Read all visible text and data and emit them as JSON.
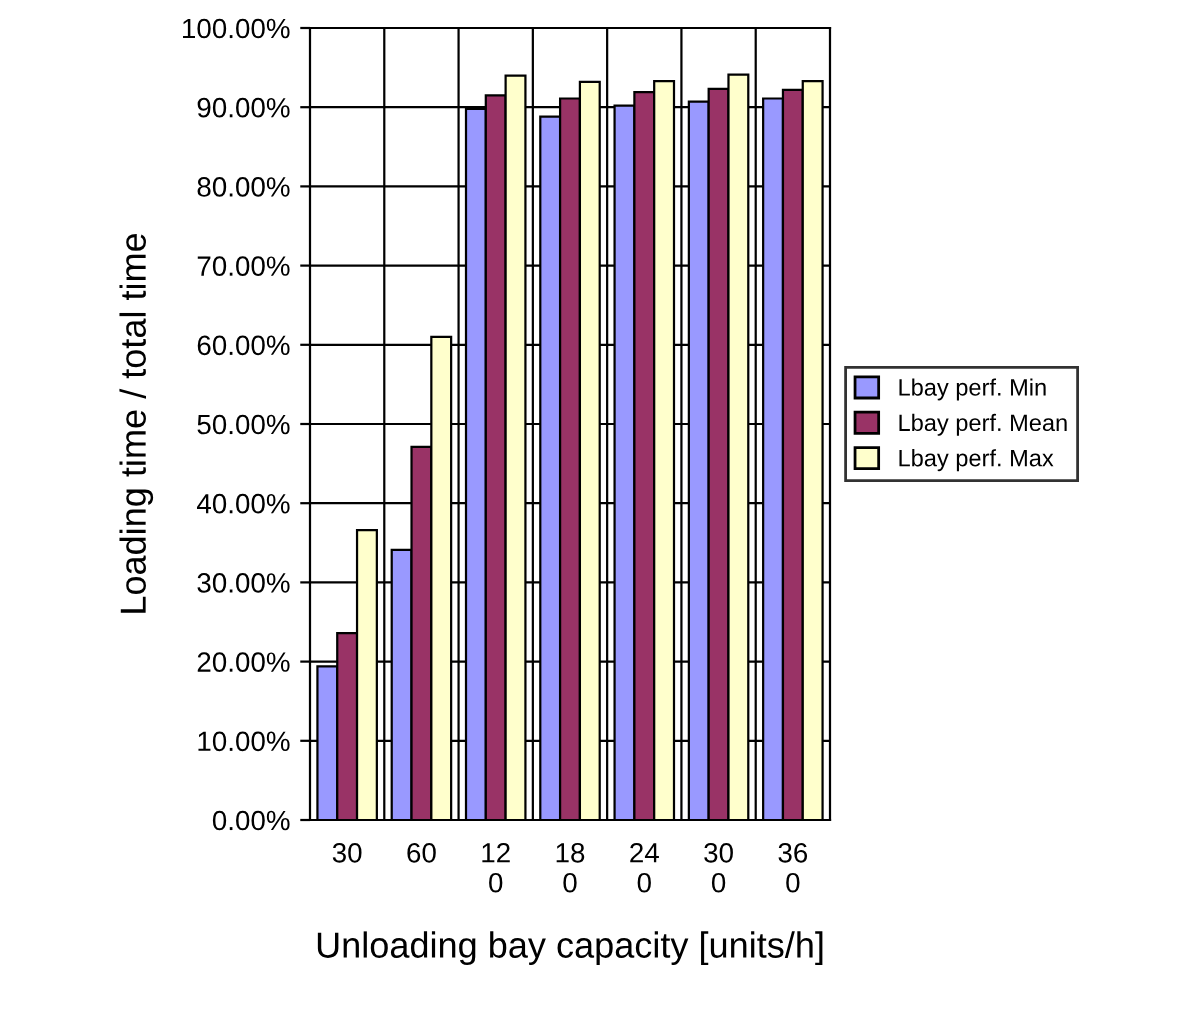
{
  "chart_data": {
    "type": "bar",
    "xlabel": "Unloading bay capacity [units/h]",
    "ylabel": "Loading time / total time",
    "categories": [
      "30",
      "60",
      "120",
      "180",
      "240",
      "300",
      "360"
    ],
    "series": [
      {
        "name": "Lbay perf. Min",
        "color": "#9999ff",
        "values": [
          19.4,
          34.1,
          89.8,
          88.8,
          90.2,
          90.7,
          91.1
        ]
      },
      {
        "name": "Lbay perf. Mean",
        "color": "#993366",
        "values": [
          23.6,
          47.1,
          91.5,
          91.1,
          91.9,
          92.3,
          92.2
        ]
      },
      {
        "name": "Lbay perf. Max",
        "color": "#ffffcc",
        "values": [
          36.6,
          61.0,
          94.0,
          93.2,
          93.3,
          94.1,
          93.3
        ]
      }
    ],
    "ylim": [
      0,
      100
    ],
    "yticks": [
      {
        "value": 0,
        "label": "0.00%"
      },
      {
        "value": 10,
        "label": "10.00%"
      },
      {
        "value": 20,
        "label": "20.00%"
      },
      {
        "value": 30,
        "label": "30.00%"
      },
      {
        "value": 40,
        "label": "40.00%"
      },
      {
        "value": 50,
        "label": "50.00%"
      },
      {
        "value": 60,
        "label": "60.00%"
      },
      {
        "value": 70,
        "label": "70.00%"
      },
      {
        "value": 80,
        "label": "80.00%"
      },
      {
        "value": 90,
        "label": "90.00%"
      },
      {
        "value": 100,
        "label": "100.00%"
      }
    ],
    "grid": true,
    "legend": "right"
  }
}
